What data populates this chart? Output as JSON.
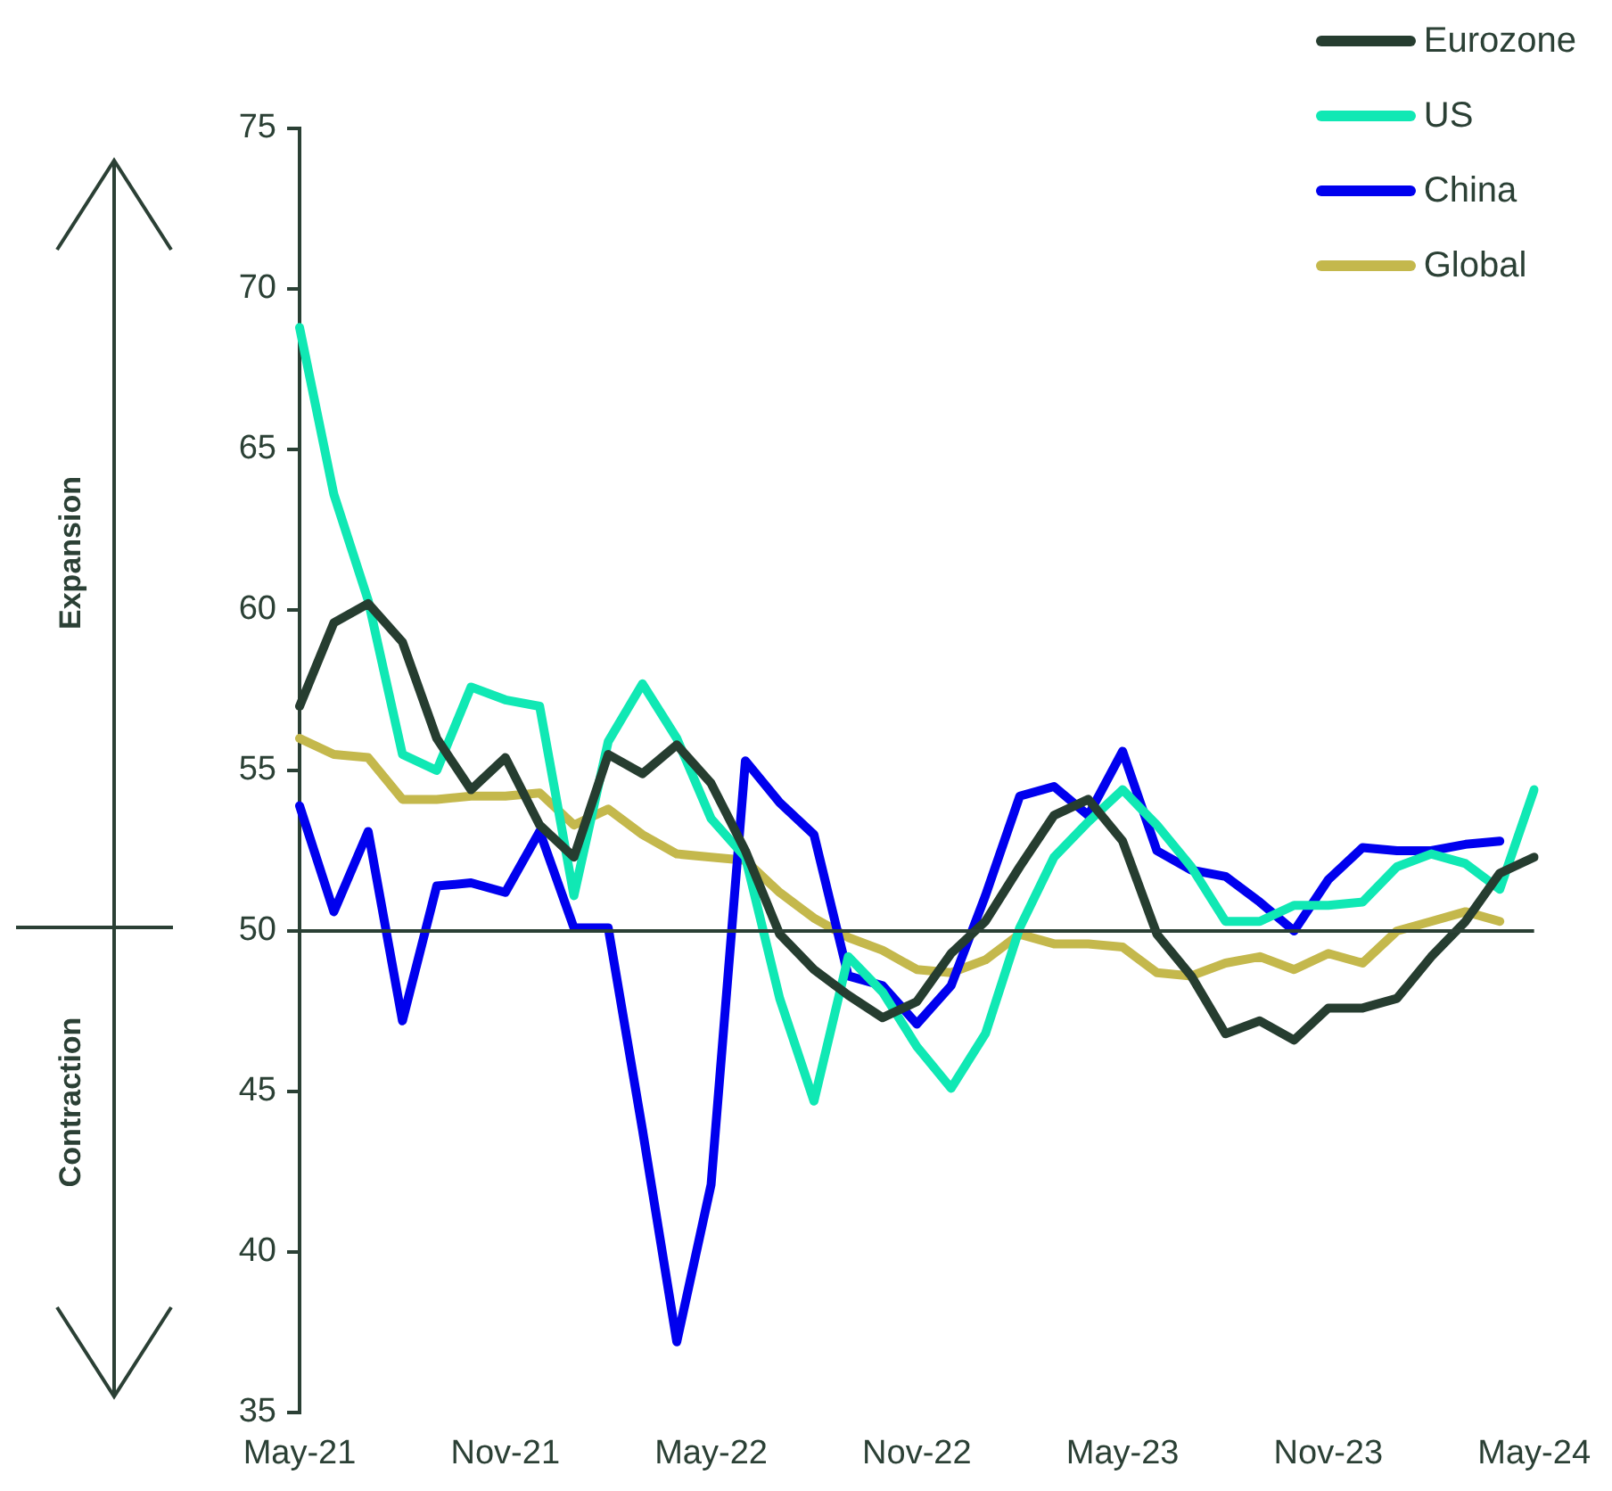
{
  "chart_data": {
    "type": "line",
    "categories": [
      "May-21",
      null,
      null,
      null,
      null,
      null,
      "Nov-21",
      null,
      null,
      null,
      null,
      null,
      "May-22",
      null,
      null,
      null,
      null,
      null,
      "Nov-22",
      null,
      null,
      null,
      null,
      null,
      "May-23",
      null,
      null,
      null,
      null,
      null,
      "Nov-23",
      null,
      null,
      null,
      null,
      null,
      "May-24"
    ],
    "series": [
      {
        "name": "Eurozone",
        "color": "#263d30",
        "values": [
          57.0,
          59.6,
          60.2,
          59.0,
          56.0,
          54.4,
          55.4,
          53.3,
          52.3,
          55.5,
          54.9,
          55.8,
          54.6,
          52.5,
          49.9,
          48.8,
          48.0,
          47.3,
          47.8,
          49.3,
          50.3,
          52.0,
          53.6,
          54.1,
          52.8,
          49.9,
          48.6,
          46.8,
          47.2,
          46.6,
          47.6,
          47.6,
          47.9,
          49.2,
          50.3,
          51.8,
          52.3
        ]
      },
      {
        "name": "US",
        "color": "#10e8b4",
        "values": [
          68.8,
          63.6,
          60.3,
          55.5,
          55.0,
          57.6,
          57.2,
          57.0,
          51.1,
          55.9,
          57.7,
          56.0,
          53.5,
          52.3,
          47.9,
          44.7,
          49.2,
          48.1,
          46.4,
          45.1,
          46.8,
          50.1,
          52.3,
          53.4,
          54.4,
          53.3,
          52.0,
          50.3,
          50.3,
          50.8,
          50.8,
          50.9,
          52.0,
          52.4,
          52.1,
          51.3,
          54.4
        ]
      },
      {
        "name": "China",
        "color": "#0000ee",
        "values": [
          53.9,
          50.6,
          53.1,
          47.2,
          51.4,
          51.5,
          51.2,
          53.1,
          50.1,
          50.1,
          43.8,
          37.2,
          42.1,
          55.3,
          54.0,
          53.0,
          48.6,
          48.3,
          47.1,
          48.3,
          51.1,
          54.2,
          54.5,
          53.6,
          55.6,
          52.5,
          51.9,
          51.7,
          50.9,
          50.0,
          51.6,
          52.6,
          52.5,
          52.5,
          52.7,
          52.8,
          null
        ]
      },
      {
        "name": "Global",
        "color": "#c4b84c",
        "values": [
          56.0,
          55.5,
          55.4,
          54.1,
          54.1,
          54.2,
          54.2,
          54.3,
          53.3,
          53.8,
          53.0,
          52.4,
          52.3,
          52.2,
          51.2,
          50.4,
          49.8,
          49.4,
          48.8,
          48.7,
          49.1,
          49.9,
          49.6,
          49.6,
          49.5,
          48.7,
          48.6,
          49.0,
          49.2,
          48.8,
          49.3,
          49.0,
          50.0,
          50.3,
          50.6,
          50.3,
          null
        ]
      }
    ],
    "ylim": [
      35,
      75
    ],
    "yticks": [
      35,
      40,
      45,
      50,
      55,
      60,
      65,
      70,
      75
    ],
    "ref_lines": [
      {
        "axis": "y",
        "value": 50,
        "color": "#2b4035"
      }
    ],
    "annotations": [
      "Expansion",
      "Contraction"
    ],
    "legend": "top right",
    "grid": false,
    "marker": "none",
    "line_style": "solid"
  }
}
